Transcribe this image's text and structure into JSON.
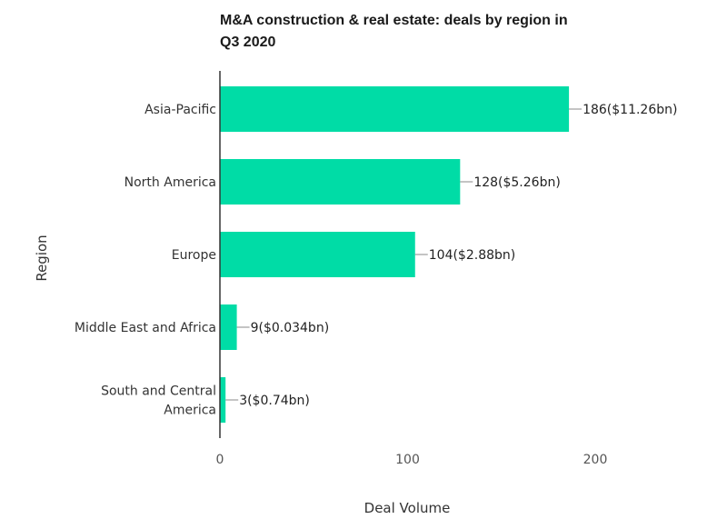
{
  "chart_data": {
    "type": "bar",
    "orientation": "horizontal",
    "title_lines": [
      "M&A construction & real estate: deals by region in",
      "Q3 2020"
    ],
    "xlabel": "Deal Volume",
    "ylabel": "Region",
    "categories": [
      [
        "Asia-Pacific"
      ],
      [
        "North America"
      ],
      [
        "Europe"
      ],
      [
        "Middle East and Africa"
      ],
      [
        "South and Central",
        "America"
      ]
    ],
    "values": [
      186,
      128,
      104,
      9,
      3
    ],
    "value_labels": [
      "186($11.26bn)",
      "128($5.26bn)",
      "104($2.88bn)",
      "9($0.034bn)",
      "3($0.74bn)"
    ],
    "xticks": [
      0,
      100,
      200
    ],
    "xlim": [
      0,
      250
    ],
    "grid": false,
    "bar_color": "#00dca6"
  }
}
